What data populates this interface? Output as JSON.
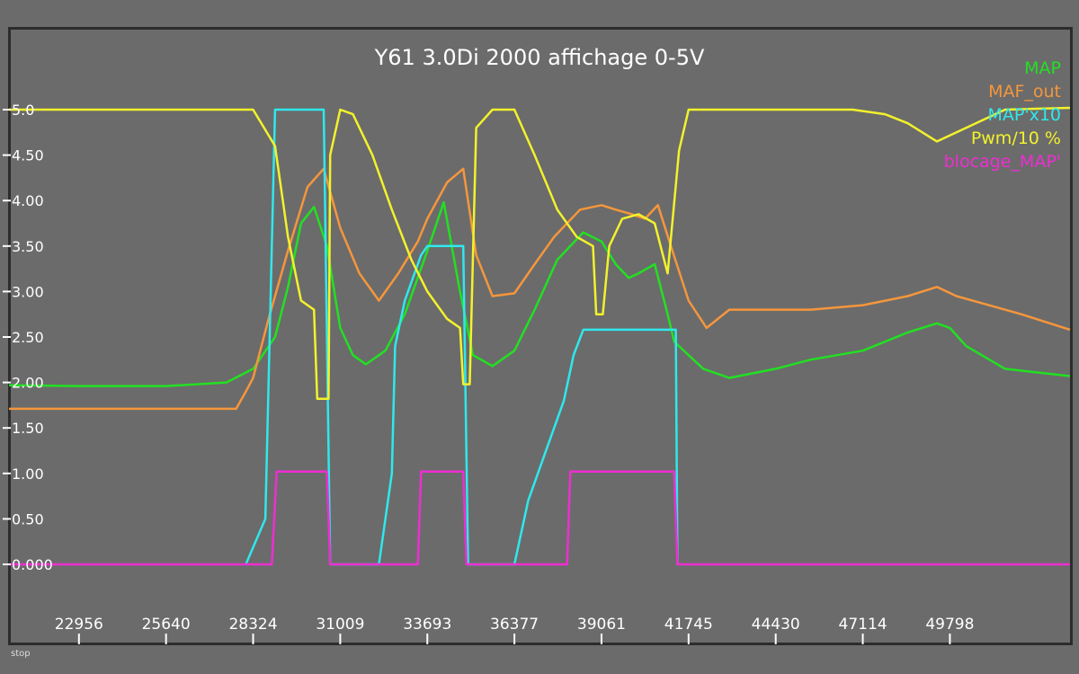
{
  "window": {
    "status": "stop"
  },
  "chart_data": {
    "type": "line",
    "title": "Y61 3.0Di 2000 affichage 0-5V",
    "xlabel": "",
    "ylabel": "",
    "ylim": [
      0,
      5
    ],
    "xlim": [
      20800,
      53500
    ],
    "grid": false,
    "legend_position": "top-right",
    "y_ticks": [
      "0.000",
      "0.50",
      "1.00",
      "1.50",
      "2.00",
      "2.50",
      "3.00",
      "3.50",
      "4.00",
      "4.50",
      "5.0"
    ],
    "y_tick_values": [
      0,
      0.5,
      1.0,
      1.5,
      2.0,
      2.5,
      3.0,
      3.5,
      4.0,
      4.5,
      5.0
    ],
    "x_ticks": [
      "22956",
      "25640",
      "28324",
      "31009",
      "33693",
      "36377",
      "39061",
      "41745",
      "44430",
      "47114",
      "49798"
    ],
    "x_tick_values": [
      22956,
      25640,
      28324,
      31009,
      33693,
      36377,
      39061,
      41745,
      44430,
      47114,
      49798
    ],
    "series": [
      {
        "name": "MAP",
        "color": "#22e022",
        "x": [
          20800,
          22956,
          25640,
          27500,
          28324,
          29000,
          29400,
          29800,
          30200,
          30600,
          31009,
          31400,
          31800,
          32400,
          33000,
          33693,
          34200,
          34700,
          35100,
          35500,
          35700,
          36377,
          37000,
          37700,
          38500,
          39061,
          39500,
          39900,
          40200,
          40700,
          41100,
          41300,
          41745,
          42200,
          43000,
          44430,
          45500,
          47114,
          48500,
          49400,
          49798,
          50300,
          51500,
          53500
        ],
        "values": [
          1.97,
          1.96,
          1.96,
          2.0,
          2.15,
          2.5,
          3.05,
          3.75,
          3.93,
          3.5,
          2.6,
          2.3,
          2.2,
          2.35,
          2.75,
          3.45,
          3.98,
          3.0,
          2.3,
          2.22,
          2.18,
          2.35,
          2.8,
          3.35,
          3.65,
          3.55,
          3.3,
          3.15,
          3.2,
          3.3,
          2.75,
          2.45,
          2.3,
          2.15,
          2.05,
          2.15,
          2.25,
          2.35,
          2.55,
          2.65,
          2.6,
          2.4,
          2.15,
          2.07
        ]
      },
      {
        "name": "MAF_out",
        "color": "#f5963c",
        "x": [
          20800,
          25640,
          27800,
          28100,
          28324,
          28800,
          29400,
          30000,
          30500,
          31009,
          31600,
          32200,
          32800,
          33400,
          33693,
          34300,
          34800,
          35200,
          35700,
          36377,
          37000,
          37600,
          38400,
          39061,
          39500,
          40000,
          40400,
          40800,
          41200,
          41745,
          42300,
          43000,
          44430,
          45500,
          47114,
          48500,
          49400,
          50000,
          51000,
          52000,
          53500
        ],
        "values": [
          1.71,
          1.71,
          1.71,
          1.9,
          2.05,
          2.7,
          3.45,
          4.15,
          4.35,
          3.7,
          3.2,
          2.9,
          3.2,
          3.55,
          3.8,
          4.2,
          4.35,
          3.4,
          2.95,
          2.98,
          3.3,
          3.6,
          3.9,
          3.95,
          3.9,
          3.85,
          3.8,
          3.95,
          3.5,
          2.9,
          2.6,
          2.8,
          2.8,
          2.8,
          2.85,
          2.95,
          3.05,
          2.95,
          2.85,
          2.75,
          2.58
        ]
      },
      {
        "name": "MAP'x10",
        "color": "#2fe8ec",
        "x": [
          28100,
          28700,
          29000,
          30500,
          30700,
          31009,
          32200,
          32600,
          32700,
          33000,
          33500,
          33693,
          34700,
          34800,
          34950,
          36377,
          36800,
          37300,
          37900,
          38200,
          38500,
          41300,
          41350,
          41400
        ],
        "values": [
          0,
          0.5,
          5.0,
          5.0,
          0,
          0,
          0,
          1.0,
          2.4,
          2.9,
          3.4,
          3.5,
          3.5,
          3.5,
          0,
          0,
          0.7,
          1.2,
          1.8,
          2.3,
          2.58,
          2.58,
          2.58,
          0
        ]
      },
      {
        "name": "Pwm/10 %",
        "color": "#f2f22c",
        "x": [
          20800,
          28324,
          29000,
          29400,
          29800,
          30200,
          30300,
          30650,
          30700,
          31009,
          31400,
          32000,
          32600,
          33200,
          33693,
          34300,
          34700,
          34800,
          35000,
          35200,
          35700,
          36377,
          37000,
          37700,
          38300,
          38800,
          38900,
          39100,
          39300,
          39700,
          40200,
          40700,
          41100,
          41450,
          41745,
          42300,
          44430,
          46800,
          47800,
          48500,
          49400,
          50300,
          51500,
          53500
        ],
        "values": [
          5.0,
          5.0,
          4.6,
          3.6,
          2.9,
          2.8,
          1.82,
          1.82,
          4.5,
          5.0,
          4.95,
          4.5,
          3.9,
          3.35,
          3.0,
          2.7,
          2.6,
          1.98,
          1.98,
          4.8,
          5.0,
          5.0,
          4.5,
          3.9,
          3.6,
          3.5,
          2.75,
          2.75,
          3.5,
          3.8,
          3.85,
          3.75,
          3.2,
          4.55,
          5.0,
          5.0,
          5.0,
          5.0,
          4.95,
          4.85,
          4.65,
          4.8,
          5.0,
          5.02
        ]
      },
      {
        "name": "blocage_MAP'",
        "color": "#ee2ed2",
        "x": [
          20800,
          28900,
          29050,
          30600,
          30700,
          33400,
          33500,
          34800,
          34900,
          38000,
          38100,
          41300,
          41400,
          53500
        ],
        "values": [
          0,
          0,
          1.02,
          1.02,
          0,
          0,
          1.02,
          1.02,
          0,
          0,
          1.02,
          1.02,
          0,
          0
        ]
      }
    ]
  }
}
